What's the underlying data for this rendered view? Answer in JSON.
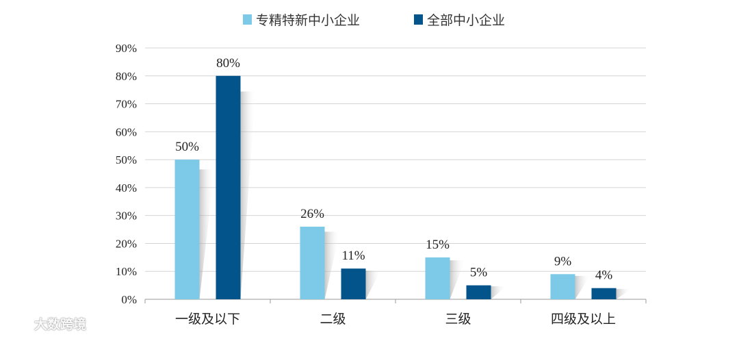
{
  "chart_data": {
    "type": "bar",
    "categories": [
      "一级及以下",
      "二级",
      "三级",
      "四级及以上"
    ],
    "series": [
      {
        "name": "专精特新中小企业",
        "values": [
          50,
          26,
          15,
          9
        ],
        "color": "#7ccae8"
      },
      {
        "name": "全部中小企业",
        "values": [
          80,
          11,
          5,
          4
        ],
        "color": "#04548c"
      }
    ],
    "data_labels": [
      [
        "50%",
        "26%",
        "15%",
        "9%"
      ],
      [
        "80%",
        "11%",
        "5%",
        "4%"
      ]
    ],
    "ylim": [
      0,
      90
    ],
    "yticks": [
      "0%",
      "10%",
      "20%",
      "30%",
      "40%",
      "50%",
      "60%",
      "70%",
      "80%",
      "90%"
    ],
    "grid": true,
    "legend_position": "top-center"
  },
  "watermark": {
    "text": "大数跨境",
    "logo": "dashuju-logo-icon"
  },
  "colors": {
    "grid": "#d4d4d4",
    "axis": "#9a9a9a"
  }
}
